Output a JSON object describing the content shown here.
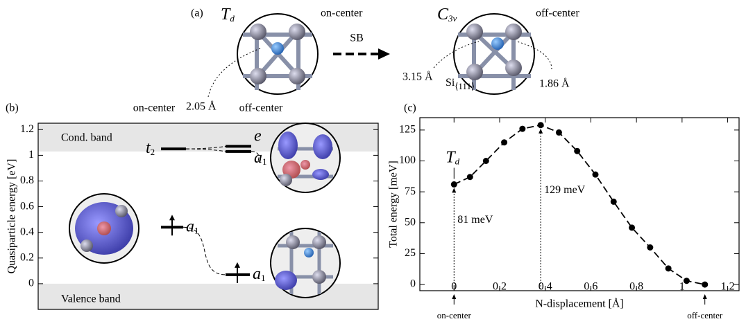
{
  "panel_a": {
    "label": "(a)",
    "left_symbol": "T",
    "left_sub": "d",
    "left_caption": "on-center",
    "arrow_label": "SB",
    "right_symbol": "C",
    "right_sub": "3v",
    "right_caption": "off-center",
    "left_distance": "2.05 Å",
    "right_distance_1": "3.15 Å",
    "right_distance_2": "1.86 Å",
    "atom": "Si",
    "atom_sub": "⟨111⟩"
  },
  "chart_data": [
    {
      "type": "levels",
      "label": "(b)",
      "ylabel": "Quasiparticle energy [eV]",
      "columns": [
        "on-center",
        "off-center"
      ],
      "bands": [
        "Cond. band",
        "Valence band"
      ],
      "cond_band_min": 1.03,
      "ylim": [
        -0.2,
        1.25
      ],
      "yticks": [
        0,
        0.2,
        0.4,
        0.6,
        0.8,
        1,
        1.2
      ],
      "levels": [
        {
          "symbol": "t",
          "sub": "2",
          "value": 1.05
        },
        {
          "symbol": "e",
          "value": 1.07
        },
        {
          "symbol": "a",
          "sub": "1",
          "value": 1.03
        },
        {
          "symbol": "a",
          "sub": "1",
          "value": 0.44
        },
        {
          "symbol": "a",
          "sub": "1",
          "value": 0.07
        }
      ]
    },
    {
      "type": "line",
      "label": "(c)",
      "xlabel": "N-displacement [Å]",
      "ylabel": "Total energy [meV]",
      "color": "#000000",
      "x": [
        0,
        0.07,
        0.14,
        0.22,
        0.3,
        0.38,
        0.46,
        0.54,
        0.62,
        0.7,
        0.78,
        0.86,
        0.94,
        1.02,
        1.1
      ],
      "values": [
        81,
        87,
        100,
        115,
        126,
        129,
        123,
        108,
        89,
        67,
        46,
        30,
        13,
        3,
        0
      ],
      "xlim": [
        -0.15,
        1.25
      ],
      "xticks": [
        0,
        0.2,
        0.4,
        0.6,
        0.8,
        1,
        1.2
      ],
      "ylim": [
        -5,
        135
      ],
      "yticks": [
        0,
        25,
        50,
        75,
        100,
        125
      ],
      "annotations": {
        "state": "T",
        "state_sub": "d",
        "barrier_left": "81 meV",
        "barrier_right": "129 meV",
        "start": "on-center",
        "end": "off-center"
      }
    }
  ]
}
